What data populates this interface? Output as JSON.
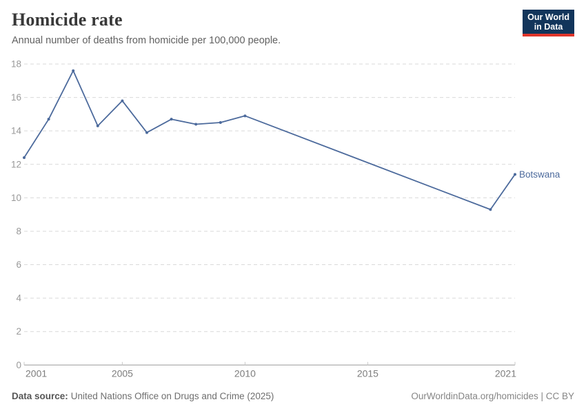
{
  "header": {
    "title": "Homicide rate",
    "subtitle": "Annual number of deaths from homicide per 100,000 people.",
    "logo": {
      "line1": "Our World",
      "line2": "in Data"
    }
  },
  "chart_data": {
    "type": "line",
    "title": "Homicide rate",
    "subtitle": "Annual number of deaths from homicide per 100,000 people.",
    "xlabel": "",
    "ylabel": "",
    "xlim": [
      2001,
      2021
    ],
    "ylim": [
      0,
      18
    ],
    "x_ticks": [
      2001,
      2005,
      2010,
      2015,
      2021
    ],
    "y_ticks": [
      0,
      2,
      4,
      6,
      8,
      10,
      12,
      14,
      16,
      18
    ],
    "grid": "horizontal-dashed",
    "legend_position": "end-of-line-label",
    "series": [
      {
        "name": "Botswana",
        "color": "#4C6A9C",
        "points": [
          [
            2001,
            12.4
          ],
          [
            2002,
            14.7
          ],
          [
            2003,
            17.6
          ],
          [
            2004,
            14.3
          ],
          [
            2005,
            15.8
          ],
          [
            2006,
            13.9
          ],
          [
            2007,
            14.7
          ],
          [
            2008,
            14.4
          ],
          [
            2009,
            14.5
          ],
          [
            2010,
            14.9
          ],
          [
            2020,
            9.3
          ],
          [
            2021,
            11.4
          ]
        ]
      }
    ]
  },
  "colors": {
    "line": "#4C6A9C",
    "gridline": "#d9d9d9",
    "axis_line": "#9a9a9a",
    "tick_mark": "#c8c8c8",
    "y_label": "#999999",
    "x_label": "#7d7d7d",
    "logo_bg": "#12355b",
    "logo_red": "#e0352b"
  },
  "footer": {
    "datasource_label": "Data source:",
    "datasource_text": "United Nations Office on Drugs and Crime (2025)",
    "link_text": "OurWorldinData.org/homicides | CC BY"
  }
}
